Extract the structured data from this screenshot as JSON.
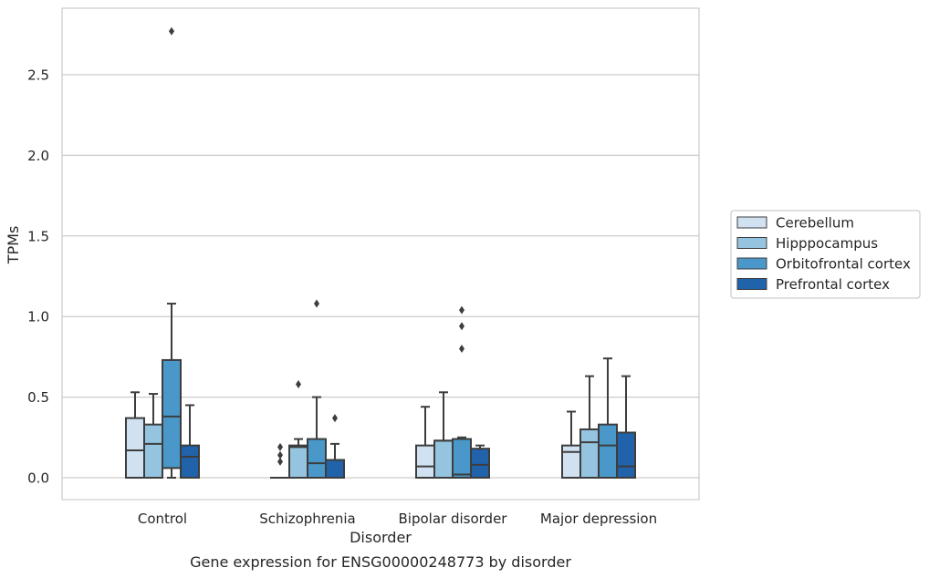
{
  "chart_data": {
    "type": "box",
    "title": "",
    "caption": "Gene expression for ENSG00000248773 by disorder",
    "xlabel": "Disorder",
    "ylabel": "TPMs",
    "ylim": [
      -0.13,
      2.9
    ],
    "yticks": [
      0.0,
      0.5,
      1.0,
      1.5,
      2.0,
      2.5
    ],
    "ytick_labels": [
      "0.0",
      "0.5",
      "1.0",
      "1.5",
      "2.0",
      "2.5"
    ],
    "grid": "horizontal",
    "legend_placement": "outside-right",
    "categories": [
      "Control",
      "Schizophrenia",
      "Bipolar disorder",
      "Major depression"
    ],
    "series": [
      {
        "name": "Cerebellum",
        "color": "#d0e1f2",
        "boxes": [
          {
            "category": "Control",
            "whisker_low": 0.0,
            "q1": 0.0,
            "median": 0.17,
            "q3": 0.37,
            "whisker_high": 0.53,
            "outliers": []
          },
          {
            "category": "Schizophrenia",
            "whisker_low": 0.0,
            "q1": 0.0,
            "median": 0.0,
            "q3": 0.0,
            "whisker_high": 0.0,
            "outliers": [
              0.1,
              0.14,
              0.19
            ]
          },
          {
            "category": "Bipolar disorder",
            "whisker_low": 0.0,
            "q1": 0.0,
            "median": 0.07,
            "q3": 0.2,
            "whisker_high": 0.44,
            "outliers": []
          },
          {
            "category": "Major depression",
            "whisker_low": 0.0,
            "q1": 0.0,
            "median": 0.16,
            "q3": 0.2,
            "whisker_high": 0.41,
            "outliers": []
          }
        ]
      },
      {
        "name": "Hipppocampus",
        "color": "#94c4df",
        "boxes": [
          {
            "category": "Control",
            "whisker_low": 0.0,
            "q1": 0.0,
            "median": 0.21,
            "q3": 0.33,
            "whisker_high": 0.52,
            "outliers": []
          },
          {
            "category": "Schizophrenia",
            "whisker_low": 0.0,
            "q1": 0.0,
            "median": 0.19,
            "q3": 0.2,
            "whisker_high": 0.24,
            "outliers": [
              0.58
            ]
          },
          {
            "category": "Bipolar disorder",
            "whisker_low": 0.0,
            "q1": 0.0,
            "median": 0.23,
            "q3": 0.23,
            "whisker_high": 0.53,
            "outliers": []
          },
          {
            "category": "Major depression",
            "whisker_low": 0.0,
            "q1": 0.0,
            "median": 0.22,
            "q3": 0.3,
            "whisker_high": 0.63,
            "outliers": []
          }
        ]
      },
      {
        "name": "Orbitofrontal cortex",
        "color": "#4a98c9",
        "boxes": [
          {
            "category": "Control",
            "whisker_low": 0.0,
            "q1": 0.06,
            "median": 0.38,
            "q3": 0.73,
            "whisker_high": 1.08,
            "outliers": [
              2.77
            ]
          },
          {
            "category": "Schizophrenia",
            "whisker_low": 0.0,
            "q1": 0.0,
            "median": 0.09,
            "q3": 0.24,
            "whisker_high": 0.5,
            "outliers": [
              1.08
            ]
          },
          {
            "category": "Bipolar disorder",
            "whisker_low": 0.0,
            "q1": 0.0,
            "median": 0.02,
            "q3": 0.24,
            "whisker_high": 0.25,
            "outliers": [
              0.8,
              0.94,
              1.04
            ]
          },
          {
            "category": "Major depression",
            "whisker_low": 0.0,
            "q1": 0.0,
            "median": 0.2,
            "q3": 0.33,
            "whisker_high": 0.74,
            "outliers": []
          }
        ]
      },
      {
        "name": "Prefrontal cortex",
        "color": "#2163aa",
        "boxes": [
          {
            "category": "Control",
            "whisker_low": 0.0,
            "q1": 0.0,
            "median": 0.13,
            "q3": 0.2,
            "whisker_high": 0.45,
            "outliers": []
          },
          {
            "category": "Schizophrenia",
            "whisker_low": 0.0,
            "q1": 0.0,
            "median": 0.11,
            "q3": 0.11,
            "whisker_high": 0.21,
            "outliers": [
              0.37
            ]
          },
          {
            "category": "Bipolar disorder",
            "whisker_low": 0.0,
            "q1": 0.0,
            "median": 0.08,
            "q3": 0.18,
            "whisker_high": 0.2,
            "outliers": []
          },
          {
            "category": "Major depression",
            "whisker_low": 0.0,
            "q1": 0.0,
            "median": 0.07,
            "q3": 0.28,
            "whisker_high": 0.63,
            "outliers": []
          }
        ]
      }
    ]
  }
}
